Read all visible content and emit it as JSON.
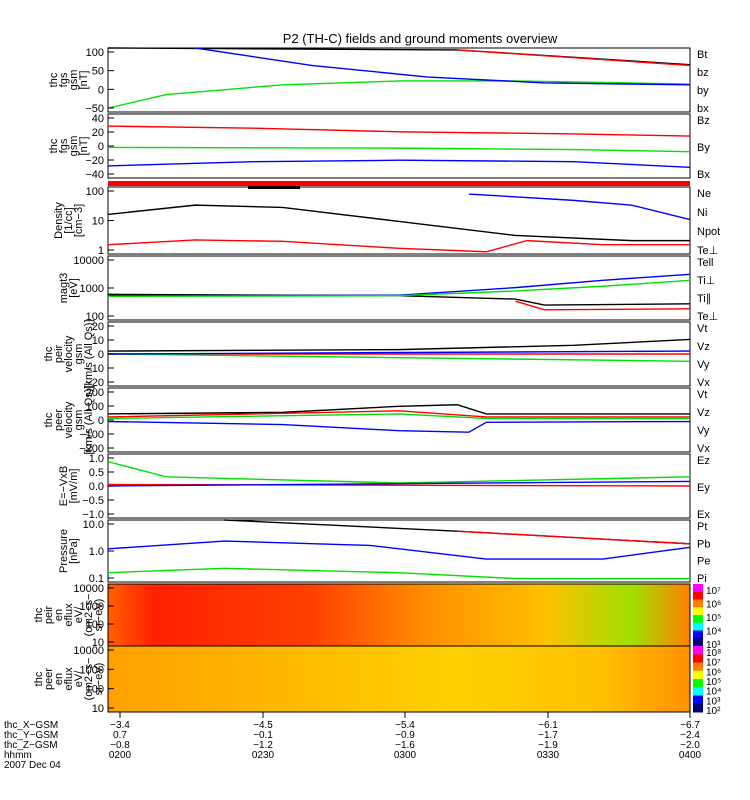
{
  "title": "P2 (TH-C) fields and ground moments overview",
  "colors": {
    "black": "#000000",
    "red": "#ff0000",
    "green": "#00e000",
    "blue": "#0000ff"
  },
  "chart_data": [
    {
      "type": "line",
      "id": "p1",
      "ylabel": [
        "thc",
        "fgs",
        "gsm",
        "[nT]"
      ],
      "yticks": [
        "100",
        "50",
        "0",
        "−50"
      ],
      "ylim": [
        -60,
        105
      ],
      "series": [
        {
          "name": "Bt",
          "color": "black",
          "points": [
            [
              0,
              140
            ],
            [
              0.6,
              100
            ],
            [
              1,
              62
            ]
          ]
        },
        {
          "name": "bz",
          "color": "red",
          "points": [
            [
              0.6,
              100
            ],
            [
              1,
              60
            ]
          ]
        },
        {
          "name": "by",
          "color": "green",
          "points": [
            [
              0,
              -50
            ],
            [
              0.1,
              -15
            ],
            [
              0.3,
              10
            ],
            [
              0.5,
              20
            ],
            [
              0.7,
              20
            ],
            [
              1,
              12
            ]
          ]
        },
        {
          "name": "bx",
          "color": "blue",
          "points": [
            [
              0.15,
              105
            ],
            [
              0.35,
              60
            ],
            [
              0.55,
              30
            ],
            [
              0.75,
              15
            ],
            [
              1,
              10
            ]
          ]
        }
      ]
    },
    {
      "type": "line",
      "id": "p2",
      "ylabel": [
        "thc",
        "fgs",
        "gsm",
        "[nT]"
      ],
      "yticks": [
        "40",
        "20",
        "0",
        "−20",
        "−40"
      ],
      "ylim": [
        -45,
        45
      ],
      "series": [
        {
          "name": "Bz",
          "color": "red",
          "points": [
            [
              0,
              28
            ],
            [
              0.25,
              25
            ],
            [
              0.5,
              20
            ],
            [
              0.8,
              17
            ],
            [
              1,
              14
            ]
          ]
        },
        {
          "name": "By",
          "color": "green",
          "points": [
            [
              0,
              -2
            ],
            [
              0.5,
              -3
            ],
            [
              0.8,
              -5
            ],
            [
              1,
              -8
            ]
          ]
        },
        {
          "name": "Bx",
          "color": "blue",
          "points": [
            [
              0,
              -28
            ],
            [
              0.25,
              -22
            ],
            [
              0.5,
              -20
            ],
            [
              0.8,
              -22
            ],
            [
              1,
              -30
            ]
          ]
        }
      ]
    },
    {
      "type": "line",
      "id": "p3",
      "log": true,
      "ylabel": [
        "Density",
        "[1/cc]",
        "[cm−3]"
      ],
      "yticks": [
        "100",
        "10",
        "1"
      ],
      "ylim": [
        0.4,
        300
      ],
      "series": [
        {
          "name": "Ne",
          "color": "blue",
          "points": [
            [
              0.62,
              150
            ],
            [
              0.8,
              80
            ],
            [
              0.9,
              50
            ],
            [
              1,
              12
            ]
          ]
        },
        {
          "name": "Ni",
          "color": "black",
          "points": [
            [
              0,
              20
            ],
            [
              0.15,
              50
            ],
            [
              0.3,
              40
            ],
            [
              0.5,
              10
            ],
            [
              0.7,
              2.5
            ],
            [
              0.9,
              1.5
            ],
            [
              1,
              1.5
            ]
          ]
        },
        {
          "name": "Npot",
          "color": "blue",
          "points": []
        },
        {
          "name": "Te⊥",
          "color": "red",
          "points": [
            [
              0,
              1
            ],
            [
              0.15,
              1.6
            ],
            [
              0.3,
              1.4
            ],
            [
              0.5,
              0.7
            ],
            [
              0.65,
              0.5
            ],
            [
              0.72,
              1.5
            ],
            [
              0.85,
              1
            ],
            [
              1,
              1
            ]
          ]
        }
      ]
    },
    {
      "type": "line",
      "id": "p4",
      "log": true,
      "ylabel": [
        "magt3",
        "[eV]"
      ],
      "yticks": [
        "10000",
        "1000",
        "100"
      ],
      "ylim": [
        50,
        12000
      ],
      "series": [
        {
          "name": "Tell",
          "color": "black",
          "points": [
            [
              0,
              450
            ],
            [
              0.5,
              400
            ],
            [
              0.7,
              300
            ],
            [
              0.75,
              180
            ],
            [
              1,
              200
            ]
          ]
        },
        {
          "name": "Ti⊥",
          "color": "blue",
          "points": [
            [
              0,
              400
            ],
            [
              0.5,
              420
            ],
            [
              0.7,
              800
            ],
            [
              0.85,
              1500
            ],
            [
              1,
              2500
            ]
          ]
        },
        {
          "name": "Ti∥",
          "color": "green",
          "points": [
            [
              0,
              380
            ],
            [
              0.5,
              400
            ],
            [
              0.7,
              600
            ],
            [
              0.85,
              900
            ],
            [
              1,
              1500
            ]
          ]
        },
        {
          "name": "Te⊥",
          "color": "red",
          "points": [
            [
              0.7,
              250
            ],
            [
              0.75,
              120
            ],
            [
              1,
              130
            ]
          ]
        }
      ]
    },
    {
      "type": "line",
      "id": "p5",
      "ylabel": [
        "thc",
        "peir",
        "velocity",
        "gsm",
        "[km/s (All Qs)]"
      ],
      "yticks": [
        "20",
        "10",
        "0",
        "−10",
        "−20"
      ],
      "ylim": [
        -22,
        22
      ],
      "series": [
        {
          "name": "Vt",
          "color": "black",
          "points": [
            [
              0,
              2
            ],
            [
              0.5,
              3
            ],
            [
              0.8,
              6
            ],
            [
              1,
              10
            ]
          ]
        },
        {
          "name": "Vz",
          "color": "red",
          "points": [
            [
              0,
              0
            ],
            [
              1,
              0
            ]
          ]
        },
        {
          "name": "Vy",
          "color": "green",
          "points": [
            [
              0,
              0
            ],
            [
              1,
              -5
            ]
          ]
        },
        {
          "name": "Vx",
          "color": "blue",
          "points": [
            [
              0,
              0
            ],
            [
              1,
              2
            ]
          ]
        }
      ]
    },
    {
      "type": "line",
      "id": "p6",
      "ylabel": [
        "thc",
        "peer",
        "velocity",
        "gsm",
        "[km/s (All Qs)]"
      ],
      "yticks": [
        "200",
        "100",
        "0",
        "−100",
        "−200"
      ],
      "ylim": [
        -210,
        210
      ],
      "series": [
        {
          "name": "Vt",
          "color": "black",
          "points": [
            [
              0,
              40
            ],
            [
              0.3,
              50
            ],
            [
              0.5,
              90
            ],
            [
              0.6,
              100
            ],
            [
              0.65,
              40
            ],
            [
              1,
              40
            ]
          ]
        },
        {
          "name": "Vz",
          "color": "red",
          "points": [
            [
              0,
              20
            ],
            [
              0.5,
              60
            ],
            [
              0.65,
              20
            ],
            [
              1,
              20
            ]
          ]
        },
        {
          "name": "Vy",
          "color": "green",
          "points": [
            [
              0,
              10
            ],
            [
              0.5,
              40
            ],
            [
              0.65,
              10
            ],
            [
              1,
              10
            ]
          ]
        },
        {
          "name": "Vx",
          "color": "blue",
          "points": [
            [
              0,
              -10
            ],
            [
              0.3,
              -30
            ],
            [
              0.5,
              -70
            ],
            [
              0.62,
              -80
            ],
            [
              0.65,
              -15
            ],
            [
              1,
              -10
            ]
          ]
        }
      ]
    },
    {
      "type": "line",
      "id": "p7",
      "ylabel": [
        "E=−VxB",
        "[mV/m]"
      ],
      "yticks": [
        "1.0",
        "0.5",
        "0.0",
        "−0.5",
        "−1.0"
      ],
      "ylim": [
        -1.05,
        1.05
      ],
      "series": [
        {
          "name": "Ez",
          "color": "red",
          "points": [
            [
              0,
              0.05
            ],
            [
              1,
              0
            ]
          ]
        },
        {
          "name": "Ey",
          "color": "green",
          "points": [
            [
              0,
              0.8
            ],
            [
              0.1,
              0.3
            ],
            [
              0.5,
              0.1
            ],
            [
              1,
              0.3
            ]
          ]
        },
        {
          "name": "Ex",
          "color": "blue",
          "points": [
            [
              0,
              0
            ],
            [
              1,
              0.15
            ]
          ]
        }
      ]
    },
    {
      "type": "line",
      "id": "p8",
      "log": true,
      "ylabel": [
        "Pressure",
        "[nPa]"
      ],
      "yticks": [
        "10.0",
        "1.0",
        "0.1"
      ],
      "ylim": [
        0.02,
        30
      ],
      "series": [
        {
          "name": "Pt",
          "color": "black",
          "points": [
            [
              0.2,
              30
            ],
            [
              0.6,
              8
            ],
            [
              1,
              1.8
            ]
          ]
        },
        {
          "name": "Pb",
          "color": "red",
          "points": [
            [
              0.6,
              8
            ],
            [
              1,
              1.8
            ]
          ]
        },
        {
          "name": "Pe",
          "color": "green",
          "points": [
            [
              0,
              0.06
            ],
            [
              0.2,
              0.1
            ],
            [
              0.5,
              0.06
            ],
            [
              0.7,
              0.03
            ],
            [
              1,
              0.03
            ]
          ]
        },
        {
          "name": "Pi",
          "color": "blue",
          "points": [
            [
              0,
              1
            ],
            [
              0.2,
              2.5
            ],
            [
              0.45,
              1.5
            ],
            [
              0.65,
              0.3
            ],
            [
              0.85,
              0.3
            ],
            [
              1,
              1.2
            ]
          ]
        }
      ]
    },
    {
      "type": "heatmap",
      "id": "p9",
      "log": true,
      "ylabel": [
        "thc",
        "peir",
        "en",
        "eflux",
        "eV/",
        "(cm2−s−",
        "sr−eV)"
      ],
      "yticks": [
        "10000",
        "1000",
        "100",
        "10"
      ],
      "colorbar_labels": [
        "10⁷",
        "10⁶",
        "10⁵",
        "10⁴",
        "10³"
      ]
    },
    {
      "type": "heatmap",
      "id": "p10",
      "log": true,
      "ylabel": [
        "thc",
        "peer",
        "en",
        "eflux",
        "eV/",
        "(cm2−s−",
        "sr−eV)"
      ],
      "yticks": [
        "10000",
        "1000",
        "100",
        "10"
      ],
      "colorbar_labels": [
        "10⁸",
        "10⁷",
        "10⁶",
        "10⁵",
        "10⁴",
        "10³",
        "10²"
      ]
    }
  ],
  "xaxis": {
    "rows": [
      {
        "label": "thc_X−GSM",
        "values": [
          "−3.4",
          "−4.5",
          "−5.4",
          "−6.1",
          "−6.7"
        ]
      },
      {
        "label": "thc_Y−GSM",
        "values": [
          "0.7",
          "−0.1",
          "−0.9",
          "−1.7",
          "−2.4"
        ]
      },
      {
        "label": "thc_Z−GSM",
        "values": [
          "−0.8",
          "−1.2",
          "−1.6",
          "−1.9",
          "−2.0"
        ]
      },
      {
        "label": "hhmm",
        "values": [
          "0200",
          "0230",
          "0300",
          "0330",
          "0400"
        ]
      }
    ],
    "date": "2007 Dec 04"
  }
}
